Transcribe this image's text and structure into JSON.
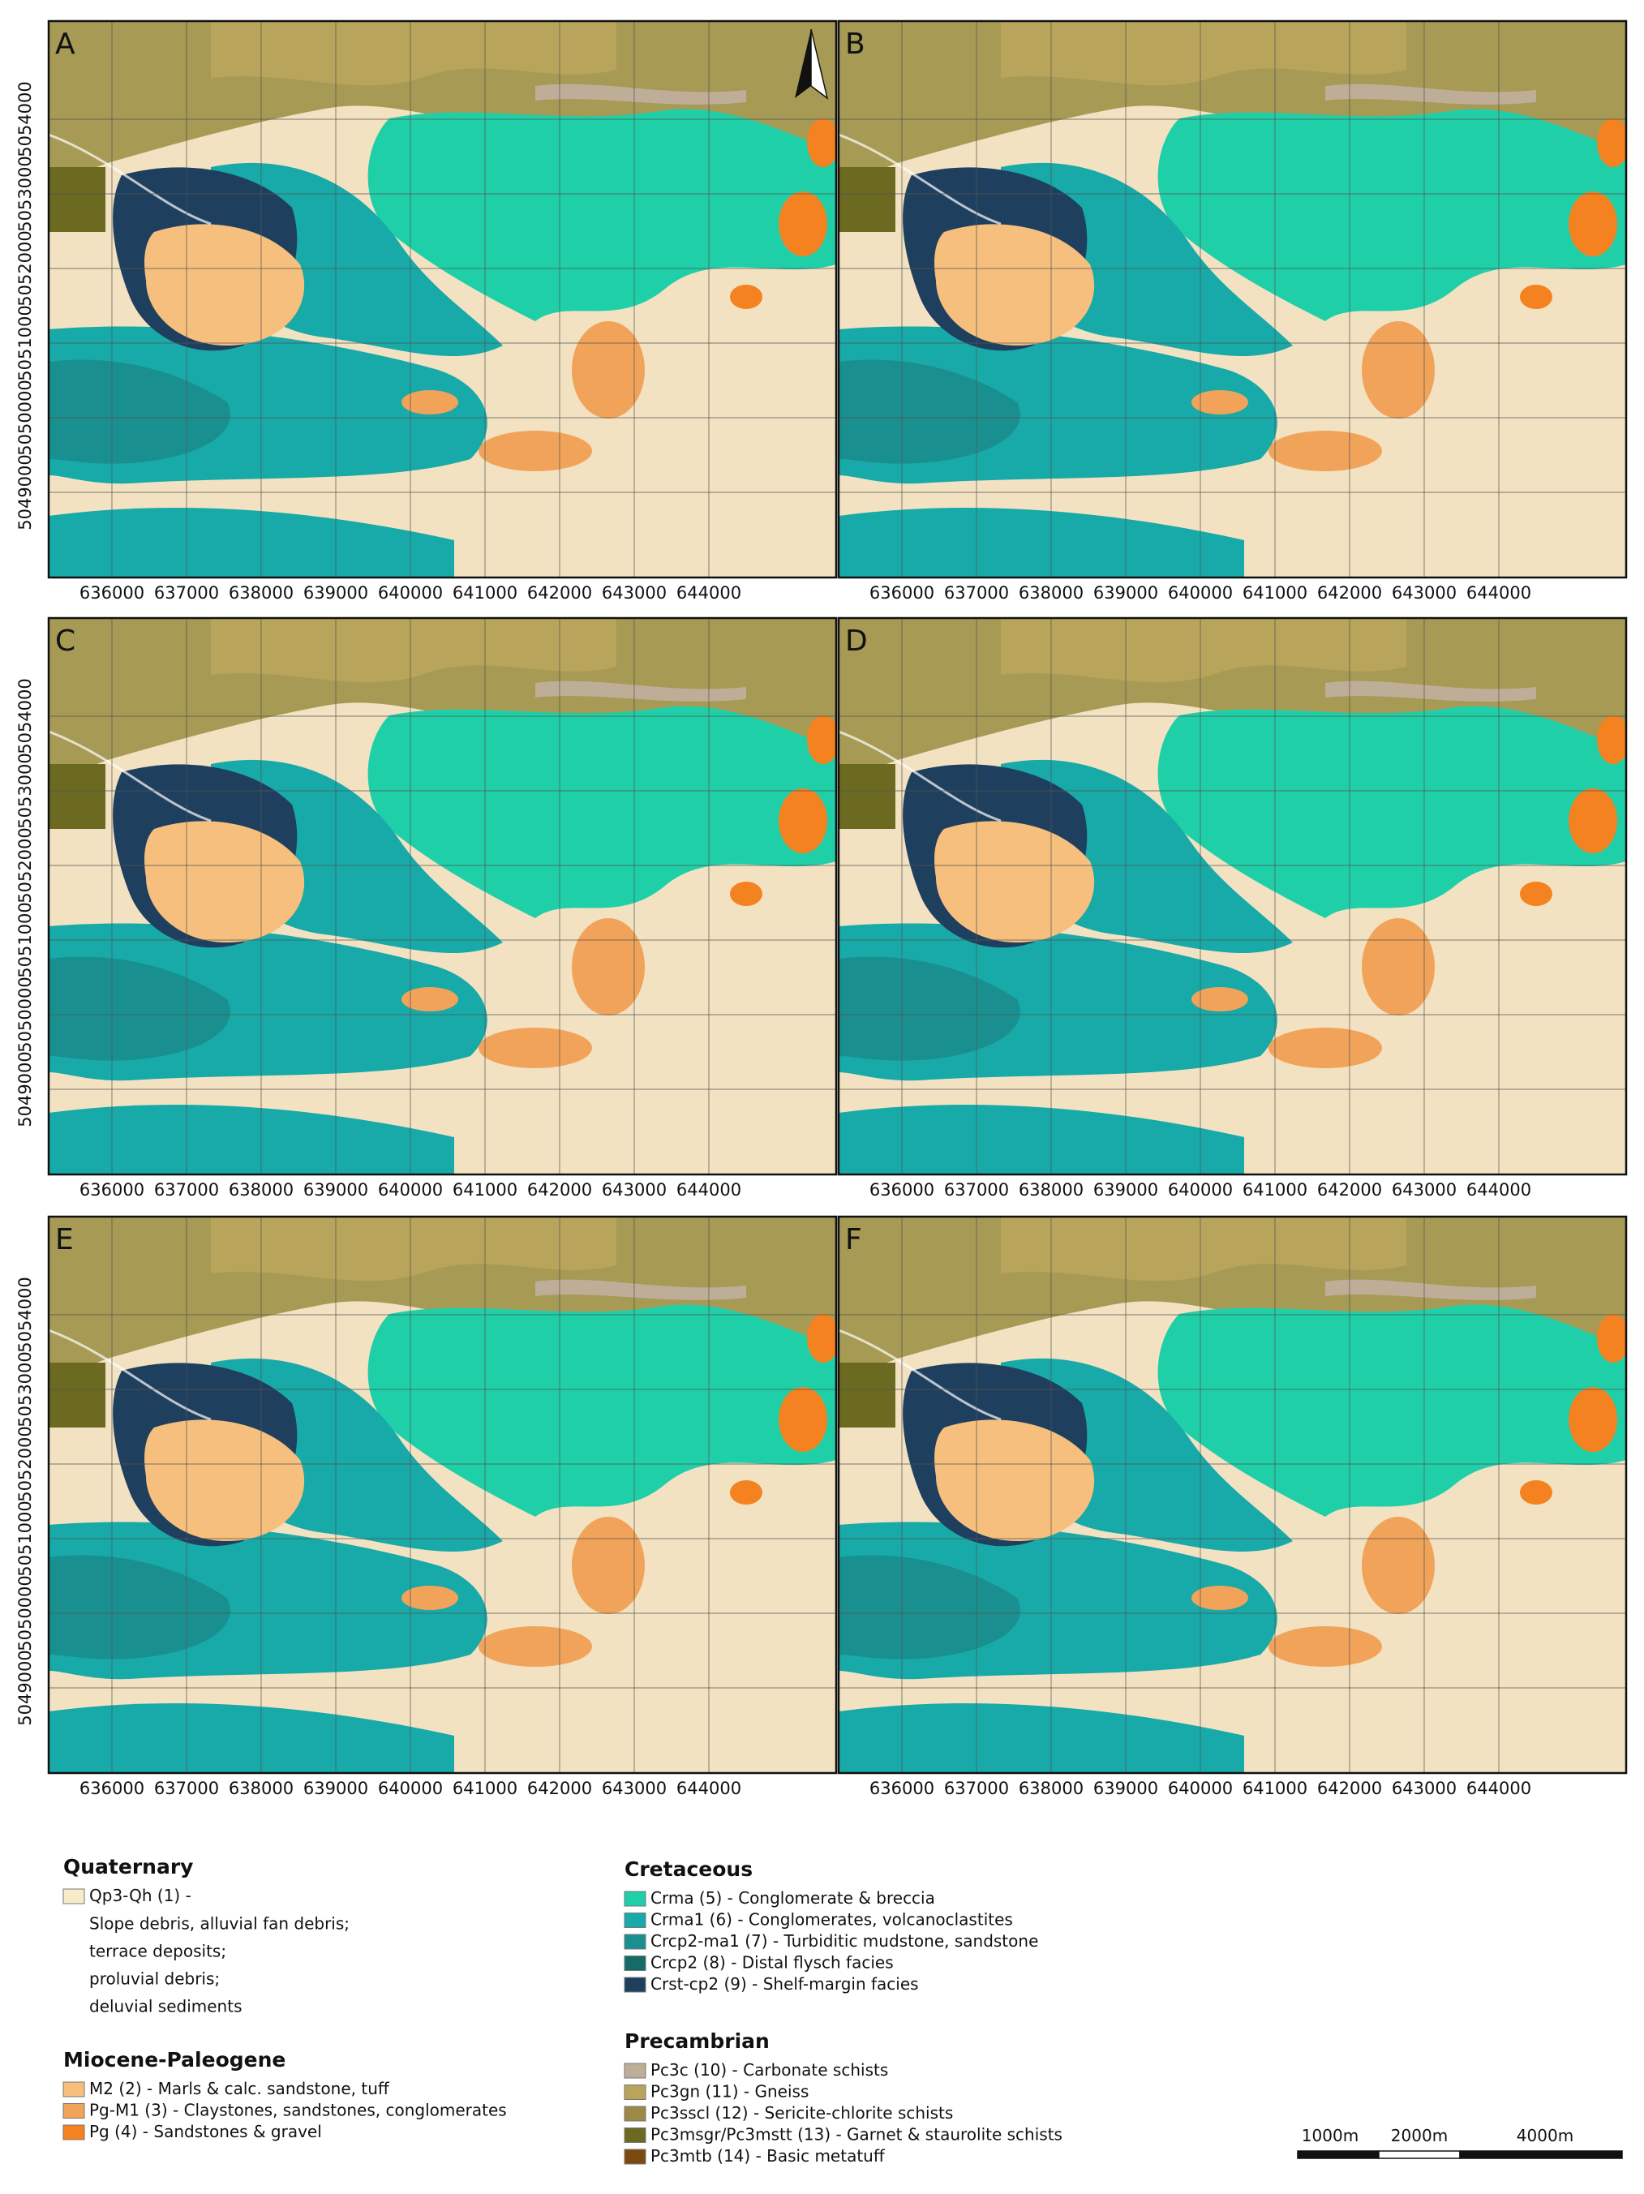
{
  "panels": [
    "A",
    "B",
    "C",
    "D",
    "E",
    "F"
  ],
  "x_tick_labels": [
    636000,
    637000,
    638000,
    639000,
    640000,
    641000,
    642000,
    643000,
    644000
  ],
  "y_tick_labels": [
    5049000,
    5050000,
    5051000,
    5052000,
    5053000,
    5054000
  ],
  "legend": [
    {
      "title": "Quaternary",
      "items": [
        {
          "label": "Qp3-Qh (1) -",
          "color": "#f7ecc9",
          "notes": [
            "Slope debris, alluvial fan debris;",
            "terrace deposits;",
            "proluvial debris;",
            "deluvial sediments"
          ]
        }
      ]
    },
    {
      "title": "Miocene-Paleogene",
      "items": [
        {
          "label": "M2 (2) - Marls & calc. sandstone, tuff",
          "color": "#f6bf7d"
        },
        {
          "label": "Pg-M1 (3) - Claystones, sandstones, conglomerates",
          "color": "#f1a35a"
        },
        {
          "label": "Pg (4) - Sandstones & gravel",
          "color": "#f58220"
        }
      ]
    },
    {
      "title": "Cretaceous",
      "items": [
        {
          "label": "Crma (5) - Conglomerate & breccia",
          "color": "#1fcfa8"
        },
        {
          "label": "Crma1 (6) -  Conglomerates, volcanoclastites",
          "color": "#17aaa8"
        },
        {
          "label": "Crcp2-ma1 (7) - Turbiditic mudstone, sandstone",
          "color": "#1a8f8f"
        },
        {
          "label": "Crcp2 (8) - Distal flysch facies",
          "color": "#146b68"
        },
        {
          "label": "Crst-cp2 (9) - Shelf-margin facies",
          "color": "#1f3f5f"
        }
      ]
    },
    {
      "title": "Precambrian",
      "items": [
        {
          "label": "Pc3c (10) - Carbonate schists",
          "color": "#bfae97"
        },
        {
          "label": "Pc3gn (11) - Gneiss",
          "color": "#b8a45a"
        },
        {
          "label": "Pc3sscl (12) - Sericite-chlorite schists",
          "color": "#9a8a45"
        },
        {
          "label": "Pc3msgr/Pc3mstt (13) - Garnet & staurolite schists",
          "color": "#6b6a20"
        },
        {
          "label": "Pc3mtb (14) - Basic metatuff",
          "color": "#7a4a10"
        }
      ]
    }
  ],
  "scale_bar": [
    "1000m",
    "2000m",
    "4000m"
  ]
}
